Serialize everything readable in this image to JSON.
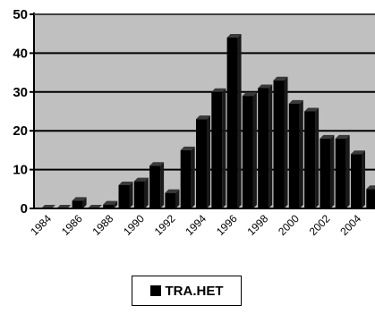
{
  "chart_data": {
    "type": "bar",
    "categories": [
      "1984",
      "1985",
      "1986",
      "1987",
      "1988",
      "1989",
      "1990",
      "1991",
      "1992",
      "1993",
      "1994",
      "1995",
      "1996",
      "1997",
      "1998",
      "1999",
      "2000",
      "2001",
      "2002",
      "2003",
      "2004",
      "2005"
    ],
    "x_tick_labels": [
      "1984",
      "1986",
      "1988",
      "1990",
      "1992",
      "1994",
      "1996",
      "1998",
      "2000",
      "2002",
      "2004"
    ],
    "series": [
      {
        "name": "TRA.HET",
        "values": [
          0,
          0,
          2,
          0,
          1,
          6,
          7,
          11,
          4,
          15,
          23,
          30,
          44,
          29,
          31,
          33,
          27,
          25,
          18,
          18,
          14,
          5
        ]
      }
    ],
    "ylim": [
      0,
      50
    ],
    "yticks": [
      0,
      10,
      20,
      30,
      40,
      50
    ],
    "grid": true,
    "legend": "bottom",
    "colors": {
      "plot_bg": "#c0c0c0",
      "bar": "#000000",
      "grid": "#000000"
    }
  }
}
